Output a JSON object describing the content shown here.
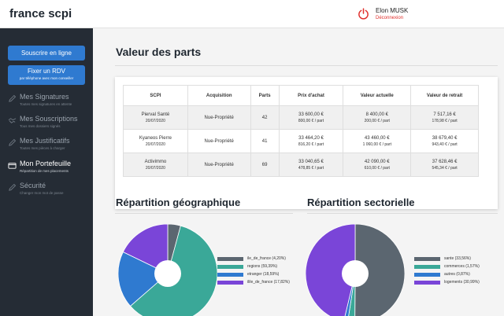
{
  "app": {
    "brand": "france scpi"
  },
  "user": {
    "name": "Elon MUSK",
    "logout": "Déconnexion"
  },
  "sidebar": {
    "subscribe_button": "Souscrire en ligne",
    "rdv_button": "Fixer un RDV",
    "rdv_sub": "par téléphone avec mon conseiller",
    "items": [
      {
        "label": "Mes Signatures",
        "sub": "Toutes mes signatures en attente",
        "icon": "pen-icon"
      },
      {
        "label": "Mes Souscriptions",
        "sub": "Tous mes dossiers signés",
        "icon": "handshake-icon"
      },
      {
        "label": "Mes Justificatifs",
        "sub": "Toutes mes pièces à charger",
        "icon": "pen-icon"
      },
      {
        "label": "Mon Portefeuille",
        "sub": "Répartition de mes placements",
        "icon": "wallet-icon"
      },
      {
        "label": "Sécurité",
        "sub": "Changer mon mot de passe",
        "icon": "pen-icon"
      }
    ]
  },
  "parts": {
    "title": "Valeur des parts",
    "columns": [
      "SCPI",
      "Acquisition",
      "Parts",
      "Prix d'achat",
      "Valeur actuelle",
      "Valeur de retrait"
    ],
    "rows": [
      {
        "scpi": "Pierval Santé",
        "date": "20/07/2020",
        "acquisition": "Nue-Propriété",
        "parts": "42",
        "prix": "33 600,00 €",
        "prix_unit": "800,00 € / part",
        "actuelle": "8 400,00 €",
        "actuelle_unit": "200,00 € / part",
        "retrait": "7 517,16 €",
        "retrait_unit": "178,98 € / part"
      },
      {
        "scpi": "Kyaneos Pierre",
        "date": "20/07/2020",
        "acquisition": "Nue-Propriété",
        "parts": "41",
        "prix": "33 464,20 €",
        "prix_unit": "816,20 € / part",
        "actuelle": "43 460,00 €",
        "actuelle_unit": "1 060,00 € / part",
        "retrait": "38 679,40 €",
        "retrait_unit": "943,40 € / part"
      },
      {
        "scpi": "Activimmo",
        "date": "20/07/2020",
        "acquisition": "Nue-Propriété",
        "parts": "69",
        "prix": "33 040,65 €",
        "prix_unit": "478,85 € / part",
        "actuelle": "42 090,00 €",
        "actuelle_unit": "610,00 € / part",
        "retrait": "37 628,46 €",
        "retrait_unit": "545,34 € / part"
      }
    ]
  },
  "chart_data": [
    {
      "type": "pie",
      "title": "Répartition géographique",
      "categories": [
        "ile_de_france (4,20%)",
        "regions (59,39%)",
        "etranger (18,59%)",
        "ilile_de_france (17,82%)"
      ],
      "values": [
        4.2,
        59.39,
        18.59,
        17.82
      ],
      "colors": [
        "#5b6670",
        "#3aa898",
        "#2f7ad0",
        "#7a45d8"
      ],
      "legend": "right"
    },
    {
      "type": "pie",
      "title": "Répartition sectorielle",
      "categories": [
        "sante (33,56%)",
        "commerces (1,57%)",
        "autres (0,87%)",
        "logements (30,99%)"
      ],
      "values": [
        33.56,
        1.57,
        0.87,
        30.99
      ],
      "colors": [
        "#5b6670",
        "#3aa898",
        "#2f7ad0",
        "#7a45d8"
      ],
      "legend": "right"
    }
  ]
}
